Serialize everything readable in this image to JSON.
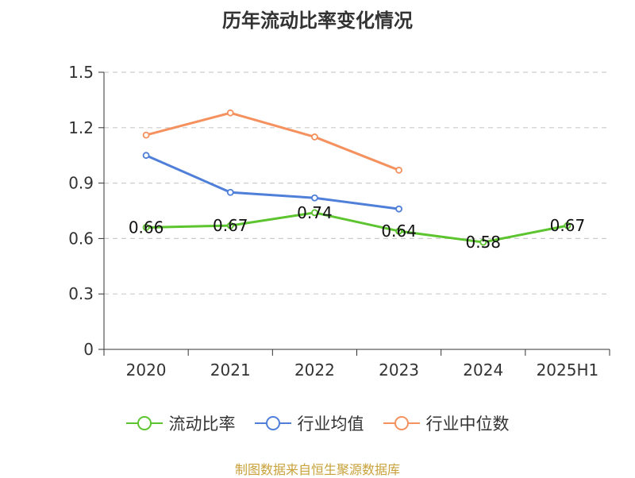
{
  "title": "历年流动比率变化情况",
  "source": "制图数据来自恒生聚源数据库",
  "colors": {
    "grid": "#cccccc",
    "axis": "#333333"
  },
  "chart_data": {
    "type": "line",
    "title": "历年流动比率变化情况",
    "categories": [
      "2020",
      "2021",
      "2022",
      "2023",
      "2024",
      "2025H1"
    ],
    "y_ticks": [
      "0",
      "0.3",
      "0.6",
      "0.9",
      "1.2",
      "1.5"
    ],
    "ylim": [
      0,
      1.5
    ],
    "grid": true,
    "legend_position": "bottom",
    "series": [
      {
        "name": "流动比率",
        "color": "#5cc42f",
        "values": [
          0.66,
          0.67,
          0.74,
          0.64,
          0.58,
          0.67
        ],
        "labels": [
          "0.66",
          "0.67",
          "0.74",
          "0.64",
          "0.58",
          "0.67"
        ]
      },
      {
        "name": "行业均值",
        "color": "#4f7fd8",
        "values": [
          1.05,
          0.85,
          0.82,
          0.76,
          null,
          null
        ]
      },
      {
        "name": "行业中位数",
        "color": "#f4915e",
        "values": [
          1.16,
          1.28,
          1.15,
          0.97,
          null,
          null
        ]
      }
    ]
  }
}
